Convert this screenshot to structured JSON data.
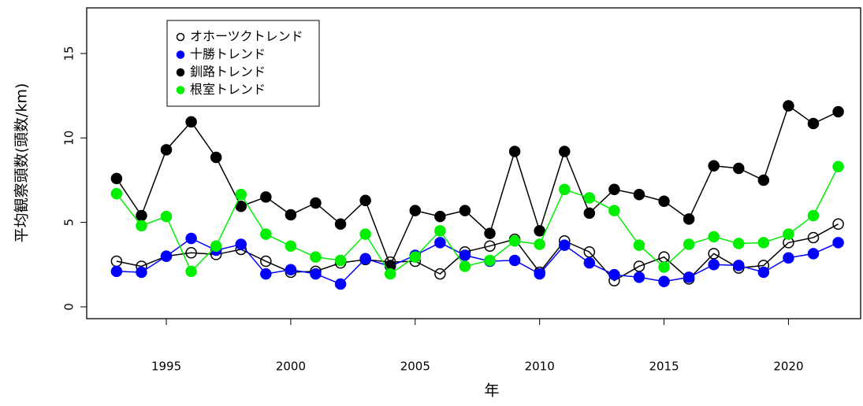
{
  "chart_data": {
    "type": "line",
    "x_label": "年",
    "y_label": "平均観察頭数(頭数/km)",
    "x": [
      1993,
      1994,
      1995,
      1996,
      1997,
      1998,
      1999,
      2000,
      2001,
      2002,
      2003,
      2004,
      2005,
      2006,
      2007,
      2008,
      2009,
      2010,
      2011,
      2012,
      2013,
      2014,
      2015,
      2016,
      2017,
      2018,
      2019,
      2020,
      2021,
      2022
    ],
    "series": [
      {
        "name": "オホーツクトレンド",
        "color": "#000000",
        "filled": false,
        "values": [
          2.7,
          2.4,
          3.0,
          3.2,
          3.1,
          3.4,
          2.7,
          2.05,
          2.1,
          2.6,
          2.8,
          2.65,
          2.7,
          1.95,
          3.25,
          3.6,
          4.0,
          2.05,
          3.9,
          3.25,
          1.55,
          2.4,
          2.95,
          1.65,
          3.15,
          2.3,
          2.45,
          3.8,
          4.1,
          4.9
        ]
      },
      {
        "name": "十勝トレンド",
        "color": "#0000ff",
        "filled": true,
        "values": [
          2.1,
          2.05,
          3.0,
          4.05,
          3.35,
          3.7,
          1.95,
          2.2,
          1.95,
          1.35,
          2.85,
          2.4,
          3.05,
          3.8,
          3.05,
          2.7,
          2.75,
          1.95,
          3.65,
          2.6,
          1.9,
          1.75,
          1.5,
          1.75,
          2.5,
          2.45,
          2.05,
          2.9,
          3.15,
          3.8
        ]
      },
      {
        "name": "釧路トレンド",
        "color": "#000000",
        "filled": true,
        "values": [
          7.6,
          5.4,
          9.3,
          10.95,
          8.85,
          5.95,
          6.5,
          5.45,
          6.15,
          4.9,
          6.3,
          2.45,
          5.7,
          5.35,
          5.7,
          4.35,
          9.2,
          4.5,
          9.2,
          5.55,
          6.95,
          6.65,
          6.25,
          5.2,
          8.35,
          8.2,
          7.5,
          11.9,
          10.85,
          11.55
        ]
      },
      {
        "name": "根室トレンド",
        "color": "#00ee00",
        "filled": true,
        "values": [
          6.7,
          4.8,
          5.35,
          2.1,
          3.6,
          6.65,
          4.3,
          3.6,
          2.95,
          2.75,
          4.3,
          1.95,
          2.95,
          4.5,
          2.4,
          2.75,
          3.9,
          3.7,
          6.95,
          6.45,
          5.7,
          3.65,
          2.35,
          3.7,
          4.15,
          3.75,
          3.8,
          4.3,
          5.4,
          8.3
        ]
      }
    ],
    "xlim": [
      1991.8,
      2022.9
    ],
    "xticks": [
      1995,
      2000,
      2005,
      2010,
      2015,
      2020
    ],
    "ylim": [
      -0.7,
      17.7
    ],
    "yticks": [
      0,
      5,
      10,
      15
    ],
    "legend": "top-left"
  }
}
